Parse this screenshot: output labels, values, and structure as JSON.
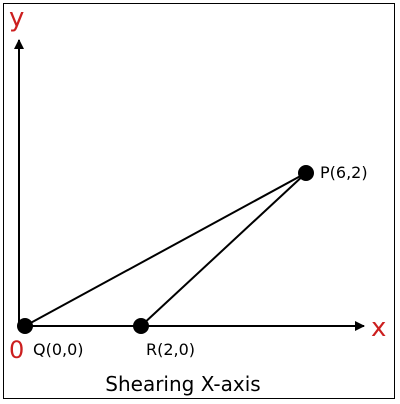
{
  "axes": {
    "x_label": "x",
    "y_label": "y",
    "origin_label": "0",
    "label_color": "#cc1f1f"
  },
  "points": {
    "P": {
      "label": "P(6,2)"
    },
    "Q": {
      "label": "Q(0,0)"
    },
    "R": {
      "label": "R(2,0)"
    }
  },
  "caption": "Shearing X-axis",
  "colors": {
    "line": "#000000",
    "background": "#ffffff"
  }
}
